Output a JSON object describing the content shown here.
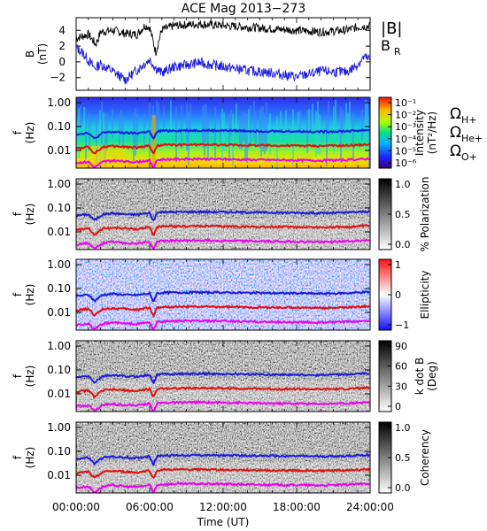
{
  "title": "ACE Mag 2013−273",
  "colors": {
    "B_total": "#000000",
    "B_R": "#1a1adc",
    "h_plus": "#1a1adc",
    "he_plus": "#e01010",
    "o_plus": "#ee00ee"
  },
  "chart_data": [
    {
      "type": "line",
      "panel": "B",
      "ylabel": [
        "B",
        "(nT)"
      ],
      "yticks": [
        "4",
        "2",
        "0",
        "−2"
      ],
      "ylim": [
        -3.6,
        5.6
      ],
      "legend": [
        "|B|",
        "B_R"
      ],
      "series": [
        {
          "name": "|B|",
          "x_hours": [
            0,
            1,
            1.6,
            2,
            3,
            4,
            5,
            5.6,
            6,
            6.5,
            7,
            7.5,
            8,
            10,
            12,
            14,
            16,
            18,
            20,
            22,
            23,
            24
          ],
          "values": [
            3.0,
            3.5,
            2.2,
            3.8,
            4.0,
            3.6,
            3.5,
            4.6,
            4.4,
            1.2,
            4.1,
            4.3,
            4.6,
            4.8,
            4.6,
            4.4,
            4.2,
            4.0,
            3.8,
            4.0,
            4.4,
            4.6
          ]
        },
        {
          "name": "B_R",
          "x_hours": [
            0,
            0.5,
            1,
            1.5,
            2,
            3,
            4,
            5,
            5.5,
            6,
            6.5,
            7,
            8,
            9,
            10,
            12,
            14,
            16,
            18,
            20,
            22,
            22.5,
            23,
            23.5,
            24
          ],
          "values": [
            1.8,
            1.2,
            0.2,
            -0.8,
            -0.3,
            -1.2,
            -2.3,
            -1.0,
            -0.3,
            0.3,
            -0.8,
            -1.4,
            -0.6,
            -0.4,
            -0.1,
            -0.6,
            -1.1,
            -1.4,
            -1.9,
            -1.2,
            -1.3,
            -0.9,
            -0.3,
            0.6,
            0.3
          ]
        }
      ]
    },
    {
      "type": "heatmap",
      "panel": "Intensity",
      "ylabel": [
        "f",
        "(Hz)"
      ],
      "yticks": [
        "1.00",
        "0.10",
        "0.01"
      ],
      "colorbar_label": [
        "Intensity",
        "(nT²/Hz)"
      ],
      "colorbar_ticks": [
        "10⁻¹",
        "10⁻²",
        "10⁻³",
        "10⁻⁴",
        "10⁻⁵",
        "10⁻⁶"
      ]
    },
    {
      "type": "heatmap",
      "panel": "Polarization",
      "ylabel": [
        "f",
        "(Hz)"
      ],
      "yticks": [
        "1.00",
        "0.10",
        "0.01"
      ],
      "colorbar_label": [
        "% Polarization"
      ],
      "colorbar_ticks": [
        "1.0",
        "0.5",
        "0.0"
      ]
    },
    {
      "type": "heatmap",
      "panel": "Ellipticity",
      "ylabel": [
        "f",
        "(Hz)"
      ],
      "yticks": [
        "1.00",
        "0.10",
        "0.01"
      ],
      "colorbar_label": [
        "Ellipticity"
      ],
      "colorbar_ticks": [
        "1",
        "0",
        "−1"
      ]
    },
    {
      "type": "heatmap",
      "panel": "k dot B",
      "ylabel": [
        "f",
        "(Hz)"
      ],
      "yticks": [
        "1.00",
        "0.10",
        "0.01"
      ],
      "colorbar_label": [
        "k dot B",
        "(Deg)"
      ],
      "colorbar_ticks": [
        "90",
        "60",
        "30",
        "0"
      ]
    },
    {
      "type": "heatmap",
      "panel": "Coherency",
      "ylabel": [
        "f",
        "(Hz)"
      ],
      "yticks": [
        "1.00",
        "0.10",
        "0.01"
      ],
      "colorbar_label": [
        "Coherency"
      ],
      "colorbar_ticks": [
        "1.0",
        "0.5",
        "0.0"
      ]
    }
  ],
  "gyro_lines": {
    "x_hours": [
      0,
      1,
      1.5,
      1.8,
      2.2,
      3,
      4,
      5,
      6,
      6.3,
      6.6,
      7,
      8,
      10,
      12,
      14,
      16,
      18,
      20,
      22,
      24
    ],
    "h_plus_hz": [
      0.048,
      0.055,
      0.03,
      0.04,
      0.055,
      0.06,
      0.054,
      0.053,
      0.063,
      0.028,
      0.062,
      0.067,
      0.068,
      0.069,
      0.068,
      0.066,
      0.064,
      0.063,
      0.061,
      0.064,
      0.072
    ],
    "he_plus_hz": [
      0.012,
      0.014,
      0.0075,
      0.01,
      0.014,
      0.015,
      0.014,
      0.013,
      0.016,
      0.007,
      0.0155,
      0.017,
      0.017,
      0.0175,
      0.017,
      0.0165,
      0.016,
      0.016,
      0.0155,
      0.016,
      0.018
    ],
    "o_plus_hz": [
      0.003,
      0.0034,
      0.0019,
      0.0025,
      0.0034,
      0.0038,
      0.0034,
      0.0033,
      0.0039,
      0.0018,
      0.0039,
      0.0042,
      0.0043,
      0.0044,
      0.0043,
      0.0041,
      0.004,
      0.0039,
      0.0038,
      0.004,
      0.0045
    ]
  },
  "gyro_labels": [
    "ΩH+",
    "ΩHe+",
    "ΩO+"
  ],
  "x_axis": {
    "ticks": [
      "00:00:00",
      "06:00:00",
      "12:00:00",
      "18:00:00",
      "24:00:00"
    ],
    "label": "Time (UT)"
  }
}
